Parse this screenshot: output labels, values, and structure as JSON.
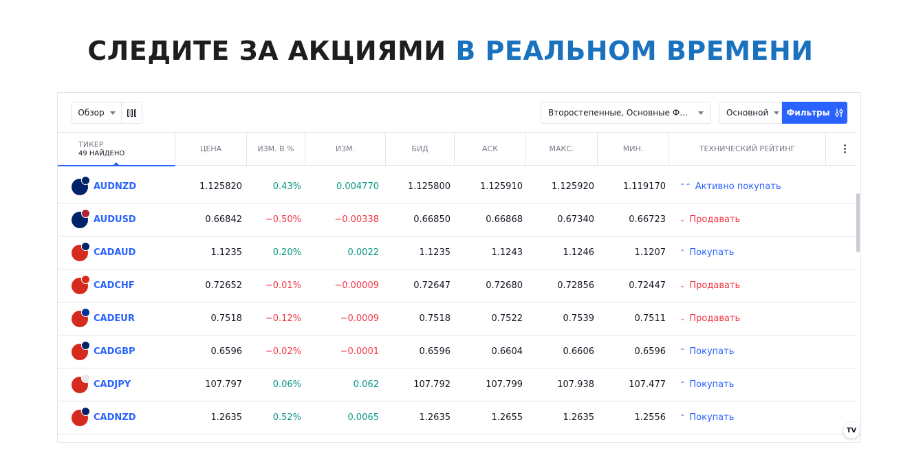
{
  "headline": {
    "dark": "СЛЕДИТЕ ЗА АКЦИЯМИ",
    "accent": "В РЕАЛЬНОМ ВРЕМЕНИ"
  },
  "toolbar": {
    "overview_label": "Обзор",
    "columns_icon": "columns-icon",
    "markets_value": "Второстепенные, Основные Форекс",
    "main_label": "Основной",
    "filters_label": "Фильтры",
    "filters_icon": "sliders-icon"
  },
  "columns": {
    "ticker": "ТИКЕР",
    "found": "49 НАЙДЕНО",
    "price": "ЦЕНА",
    "chg_pct": "ИЗМ. В %",
    "chg": "ИЗМ.",
    "bid": "БИД",
    "ask": "АСК",
    "high": "МАКС.",
    "low": "МИН.",
    "rating": "ТЕХНИЧЕСКИЙ РЕЙТИНГ"
  },
  "rows": [
    {
      "symbol": "AUDNZD",
      "price": "1.125820",
      "chg_pct": "0.43%",
      "chg": "0.004770",
      "bid": "1.125800",
      "ask": "1.125910",
      "high": "1.125920",
      "low": "1.119170",
      "rating": "Активно покупать",
      "dir": "pos",
      "rating_type": "strong-buy",
      "base_color": "#012169",
      "quote_color": "#012169"
    },
    {
      "symbol": "AUDUSD",
      "price": "0.66842",
      "chg_pct": "−0.50%",
      "chg": "−0.00338",
      "bid": "0.66850",
      "ask": "0.66868",
      "high": "0.67340",
      "low": "0.66723",
      "rating": "Продавать",
      "dir": "neg",
      "rating_type": "sell",
      "base_color": "#012169",
      "quote_color": "#b22234"
    },
    {
      "symbol": "CADAUD",
      "price": "1.1235",
      "chg_pct": "0.20%",
      "chg": "0.0022",
      "bid": "1.1235",
      "ask": "1.1243",
      "high": "1.1246",
      "low": "1.1207",
      "rating": "Покупать",
      "dir": "pos",
      "rating_type": "buy",
      "base_color": "#d52b1e",
      "quote_color": "#012169"
    },
    {
      "symbol": "CADCHF",
      "price": "0.72652",
      "chg_pct": "−0.01%",
      "chg": "−0.00009",
      "bid": "0.72647",
      "ask": "0.72680",
      "high": "0.72856",
      "low": "0.72447",
      "rating": "Продавать",
      "dir": "neg",
      "rating_type": "sell",
      "base_color": "#d52b1e",
      "quote_color": "#da291c"
    },
    {
      "symbol": "CADEUR",
      "price": "0.7518",
      "chg_pct": "−0.12%",
      "chg": "−0.0009",
      "bid": "0.7518",
      "ask": "0.7522",
      "high": "0.7539",
      "low": "0.7511",
      "rating": "Продавать",
      "dir": "neg",
      "rating_type": "sell",
      "base_color": "#d52b1e",
      "quote_color": "#003399"
    },
    {
      "symbol": "CADGBP",
      "price": "0.6596",
      "chg_pct": "−0.02%",
      "chg": "−0.0001",
      "bid": "0.6596",
      "ask": "0.6604",
      "high": "0.6606",
      "low": "0.6596",
      "rating": "Покупать",
      "dir": "neg",
      "rating_type": "buy",
      "base_color": "#d52b1e",
      "quote_color": "#012169"
    },
    {
      "symbol": "CADJPY",
      "price": "107.797",
      "chg_pct": "0.06%",
      "chg": "0.062",
      "bid": "107.792",
      "ask": "107.799",
      "high": "107.938",
      "low": "107.477",
      "rating": "Покупать",
      "dir": "pos",
      "rating_type": "buy",
      "base_color": "#d52b1e",
      "quote_color": "#e8e8e8"
    },
    {
      "symbol": "CADNZD",
      "price": "1.2635",
      "chg_pct": "0.52%",
      "chg": "0.0065",
      "bid": "1.2635",
      "ask": "1.2655",
      "high": "1.2635",
      "low": "1.2556",
      "rating": "Покупать",
      "dir": "pos",
      "rating_type": "buy",
      "base_color": "#d52b1e",
      "quote_color": "#012169"
    }
  ],
  "logo_text": "TV",
  "colors": {
    "accent": "#1a72bf",
    "link": "#2962ff",
    "positive": "#089981",
    "negative": "#f23645"
  }
}
